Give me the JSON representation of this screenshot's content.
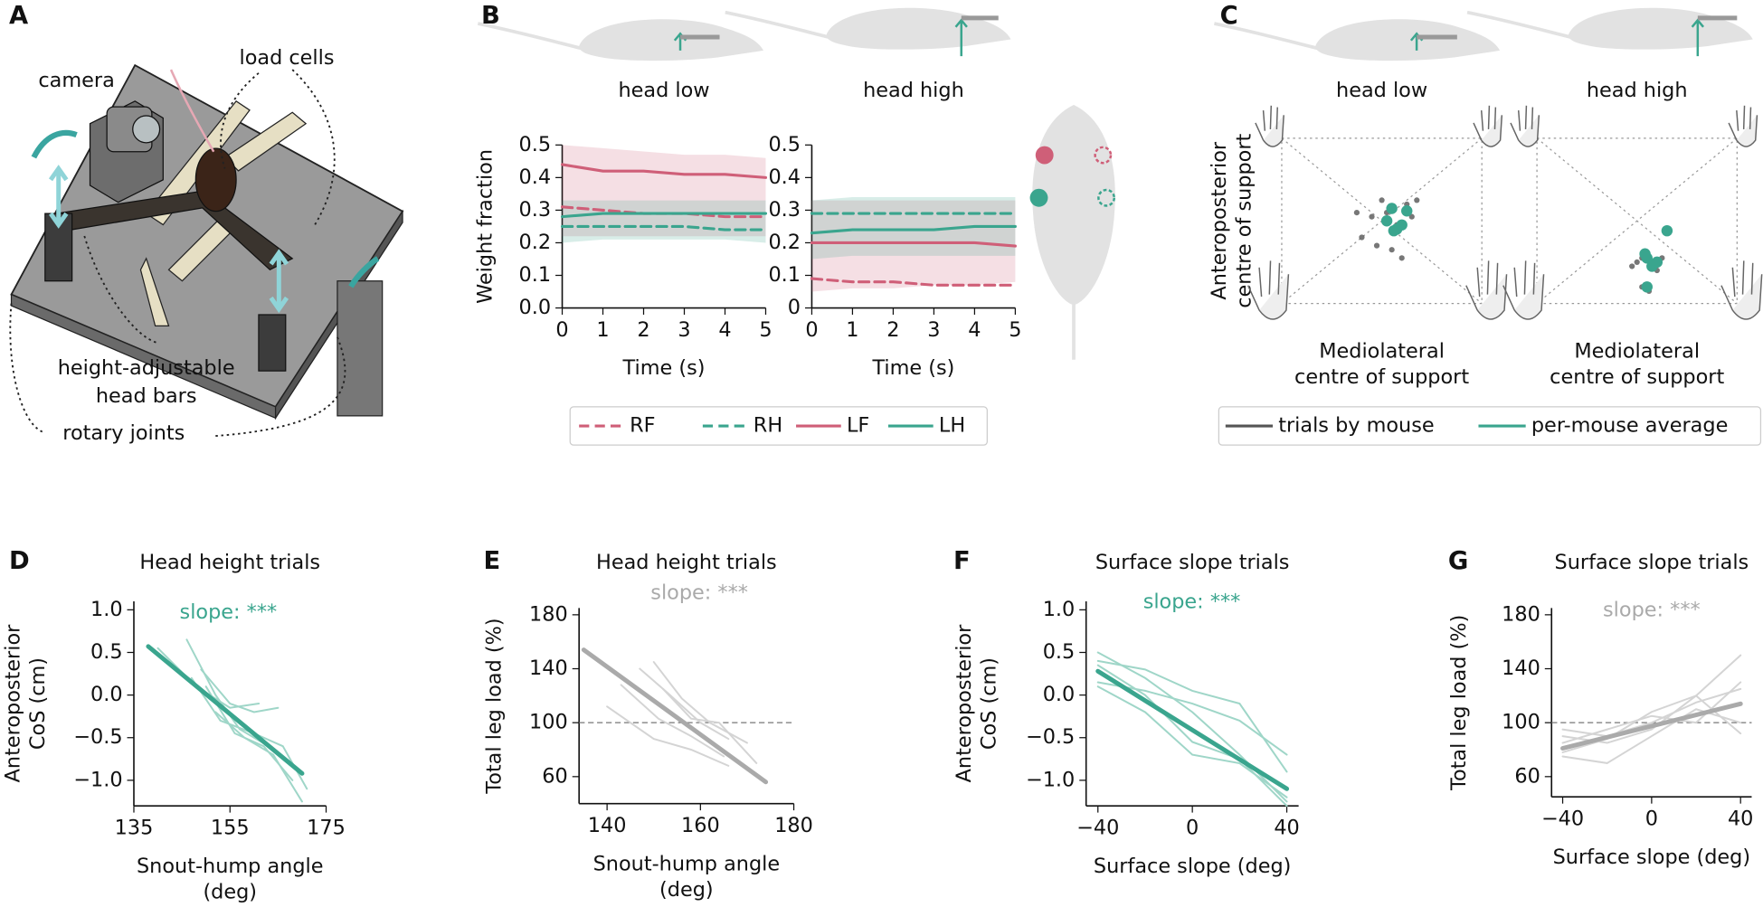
{
  "panel_labels": [
    "A",
    "B",
    "C",
    "D",
    "E",
    "F",
    "G"
  ],
  "illustration": {
    "labels": [
      "camera",
      "load cells",
      [
        "height-adjustable",
        "head bars"
      ],
      "rotary joints"
    ]
  },
  "chart_data": [
    {
      "type": "line",
      "title": "head low",
      "ylabel": "Weight fraction",
      "xlabel": "Time (s)",
      "x": [
        0,
        1,
        2,
        3,
        4,
        5
      ],
      "xlim": [
        0,
        5
      ],
      "xticks": [
        0,
        1,
        2,
        3,
        4,
        5
      ],
      "ylim": [
        0,
        0.5
      ],
      "yticks": [
        {
          "value": 0,
          "label": "0.0"
        },
        0.1,
        0.2,
        0.3,
        0.4,
        0.5
      ],
      "legend": "below",
      "series": [
        {
          "name": "RF",
          "color": "#cf5f78",
          "dash": true,
          "values": [
            0.31,
            0.3,
            0.29,
            0.29,
            0.28,
            0.28
          ]
        },
        {
          "name": "RH",
          "color": "#3aa58e",
          "dash": true,
          "values": [
            0.25,
            0.25,
            0.25,
            0.25,
            0.24,
            0.24
          ]
        },
        {
          "name": "LF",
          "color": "#cf5f78",
          "values": [
            0.44,
            0.42,
            0.42,
            0.41,
            0.41,
            0.4
          ],
          "lower": [
            0.22,
            0.22,
            0.22,
            0.22,
            0.22,
            0.22
          ],
          "upper": [
            0.5,
            0.49,
            0.48,
            0.47,
            0.47,
            0.46
          ]
        },
        {
          "name": "LH",
          "color": "#3aa58e",
          "values": [
            0.28,
            0.29,
            0.29,
            0.29,
            0.29,
            0.29
          ],
          "lower": [
            0.2,
            0.21,
            0.21,
            0.21,
            0.21,
            0.2
          ],
          "upper": [
            0.33,
            0.33,
            0.33,
            0.33,
            0.33,
            0.33
          ]
        }
      ]
    },
    {
      "type": "line",
      "title": "head high",
      "xlabel": "Time (s)",
      "x": [
        0,
        1,
        2,
        3,
        4,
        5
      ],
      "xlim": [
        0,
        5
      ],
      "xticks": [
        0,
        1,
        2,
        3,
        4,
        5
      ],
      "ylim": [
        0,
        0.5
      ],
      "yticks": [
        0,
        0.1,
        0.2,
        0.3,
        0.4,
        0.5
      ],
      "series": [
        {
          "color": "#cf5f78",
          "dash": true,
          "values": [
            0.09,
            0.08,
            0.08,
            0.07,
            0.07,
            0.07
          ]
        },
        {
          "color": "#3aa58e",
          "dash": true,
          "values": [
            0.29,
            0.29,
            0.29,
            0.29,
            0.29,
            0.29
          ]
        },
        {
          "color": "#cf5f78",
          "values": [
            0.2,
            0.2,
            0.2,
            0.2,
            0.2,
            0.19
          ],
          "lower": [
            0.05,
            0.06,
            0.06,
            0.07,
            0.07,
            0.08
          ],
          "upper": [
            0.33,
            0.33,
            0.33,
            0.33,
            0.33,
            0.33
          ]
        },
        {
          "color": "#3aa58e",
          "values": [
            0.23,
            0.24,
            0.24,
            0.24,
            0.25,
            0.25
          ],
          "lower": [
            0.15,
            0.16,
            0.16,
            0.16,
            0.16,
            0.16
          ],
          "upper": [
            0.33,
            0.34,
            0.34,
            0.34,
            0.34,
            0.34
          ]
        }
      ]
    },
    {
      "type": "scatter",
      "title": "head low",
      "ylabel": [
        "Anteroposterior",
        "centre of support"
      ],
      "xlabel": [
        "Mediolateral",
        "centre of support"
      ],
      "xlim": [
        -1,
        1
      ],
      "ylim": [
        -1,
        1
      ],
      "legend": "below",
      "series": [
        {
          "name": "trials by mouse",
          "color": "#555555",
          "x": [
            -0.1,
            0.05,
            0.15,
            0.25,
            -0.2,
            0.1,
            0.3,
            -0.05,
            0.2,
            0.35,
            -0.25,
            0.0
          ],
          "values": [
            0.05,
            0.1,
            -0.05,
            0.2,
            -0.2,
            -0.35,
            0.05,
            -0.3,
            -0.45,
            0.25,
            0.1,
            0.25
          ]
        },
        {
          "name": "per-mouse average",
          "color": "#3aa58e",
          "x": [
            0.05,
            0.15,
            0.25,
            0.1,
            0.2,
            0.12
          ],
          "values": [
            0.0,
            -0.1,
            0.12,
            0.15,
            -0.05,
            -0.12
          ]
        }
      ]
    },
    {
      "type": "scatter",
      "title": "head high",
      "xlabel": [
        "Mediolateral",
        "centre of support"
      ],
      "xlim": [
        -1,
        1
      ],
      "ylim": [
        -1,
        1
      ],
      "series": [
        {
          "color": "#555555",
          "x": [
            0.05,
            0.1,
            0.15,
            0.0,
            0.2,
            0.05,
            0.12,
            -0.05,
            0.25
          ],
          "values": [
            -0.45,
            -0.4,
            -0.55,
            -0.5,
            -0.6,
            -0.8,
            -0.85,
            -0.55,
            -0.45
          ]
        },
        {
          "color": "#3aa58e",
          "x": [
            0.1,
            0.15,
            0.3,
            0.1,
            0.2,
            0.08
          ],
          "values": [
            -0.45,
            -0.55,
            -0.12,
            -0.8,
            -0.5,
            -0.4
          ]
        }
      ]
    },
    {
      "type": "line",
      "title": "Head height trials",
      "ylabel": [
        "Anteroposterior",
        "CoS (cm)"
      ],
      "xlabel": [
        "Snout-hump angle",
        "(deg)"
      ],
      "annotation": {
        "text": "slope: ***",
        "color": "#3aa58e"
      },
      "xlim": [
        135,
        175
      ],
      "xticks": [
        135,
        155,
        175
      ],
      "ylim": [
        -1.3,
        1.1
      ],
      "yticks": [
        {
          "value": 1,
          "label": "1.0"
        },
        0.5,
        {
          "value": 0,
          "label": "0.0"
        },
        {
          "value": -0.5,
          "label": "−0.5"
        },
        {
          "value": -1,
          "label": "−1.0"
        }
      ],
      "series": [
        {
          "color": "#9fd6c8",
          "linewidth": 1.6,
          "x": [
            146,
            152,
            157,
            163
          ],
          "values": [
            0.65,
            0.0,
            -0.4,
            -0.6
          ]
        },
        {
          "color": "#9fd6c8",
          "linewidth": 1.6,
          "x": [
            149,
            155,
            160,
            165
          ],
          "values": [
            0.3,
            -0.1,
            -0.2,
            -0.15
          ]
        },
        {
          "color": "#9fd6c8",
          "linewidth": 1.6,
          "x": [
            147,
            153,
            160,
            166,
            171
          ],
          "values": [
            0.2,
            -0.3,
            -0.45,
            -0.6,
            -1.1
          ]
        },
        {
          "color": "#9fd6c8",
          "linewidth": 1.6,
          "x": [
            150,
            156,
            162,
            168
          ],
          "values": [
            0.1,
            -0.45,
            -0.6,
            -1.0
          ]
        },
        {
          "color": "#9fd6c8",
          "linewidth": 1.6,
          "x": [
            152,
            158,
            164,
            170
          ],
          "values": [
            -0.2,
            -0.5,
            -0.7,
            -1.25
          ]
        },
        {
          "color": "#9fd6c8",
          "linewidth": 1.6,
          "x": [
            140,
            148,
            155,
            161
          ],
          "values": [
            0.55,
            0.1,
            -0.15,
            -0.1
          ]
        },
        {
          "color": "#3aa58e",
          "linewidth": 4,
          "x": [
            138,
            170
          ],
          "values": [
            0.57,
            -0.92
          ]
        }
      ]
    },
    {
      "type": "line",
      "title": "Head height trials",
      "ylabel": "Total leg load (%)",
      "xlabel": [
        "Snout-hump angle",
        "(deg)"
      ],
      "annotation": {
        "text": "slope: ***",
        "color": "#aaaaaa"
      },
      "hline": 100,
      "xlim": [
        134,
        180
      ],
      "xticks": [
        140,
        160,
        180
      ],
      "ylim": [
        40,
        185
      ],
      "yticks": [
        180,
        140,
        100,
        60
      ],
      "series": [
        {
          "color": "#d4d4d4",
          "linewidth": 1.6,
          "x": [
            147,
            153,
            160,
            166
          ],
          "values": [
            140,
            122,
            100,
            88
          ]
        },
        {
          "color": "#d4d4d4",
          "linewidth": 1.6,
          "x": [
            140,
            150,
            158,
            166
          ],
          "values": [
            112,
            88,
            80,
            68
          ]
        },
        {
          "color": "#d4d4d4",
          "linewidth": 1.6,
          "x": [
            150,
            156,
            162,
            170
          ],
          "values": [
            145,
            118,
            100,
            85
          ]
        },
        {
          "color": "#d4d4d4",
          "linewidth": 1.6,
          "x": [
            152,
            158,
            164,
            172
          ],
          "values": [
            125,
            103,
            100,
            70
          ]
        },
        {
          "color": "#d4d4d4",
          "linewidth": 1.6,
          "x": [
            143,
            151,
            158,
            165
          ],
          "values": [
            128,
            103,
            90,
            75
          ]
        },
        {
          "color": "#aaaaaa",
          "linewidth": 4,
          "x": [
            135,
            174
          ],
          "values": [
            154,
            56
          ]
        }
      ]
    },
    {
      "type": "line",
      "title": "Surface slope trials",
      "ylabel": [
        "Anteroposterior",
        "CoS (cm)"
      ],
      "xlabel": "Surface slope (deg)",
      "annotation": {
        "text": "slope: ***",
        "color": "#3aa58e"
      },
      "xlim": [
        -45,
        45
      ],
      "xticks": [
        {
          "value": -40,
          "label": "−40"
        },
        0,
        40
      ],
      "ylim": [
        -1.3,
        1.1
      ],
      "yticks": [
        {
          "value": 1,
          "label": "1.0"
        },
        0.5,
        {
          "value": 0,
          "label": "0.0"
        },
        {
          "value": -0.5,
          "label": "−0.5"
        },
        {
          "value": -1,
          "label": "−1.0"
        }
      ],
      "series": [
        {
          "color": "#9fd6c8",
          "linewidth": 1.6,
          "x": [
            -40,
            -20,
            0,
            20,
            40
          ],
          "values": [
            0.5,
            0.2,
            -0.2,
            -0.7,
            -1.25
          ]
        },
        {
          "color": "#9fd6c8",
          "linewidth": 1.6,
          "x": [
            -40,
            -20,
            0,
            20,
            40
          ],
          "values": [
            0.15,
            0.05,
            -0.1,
            -0.3,
            -0.7
          ]
        },
        {
          "color": "#9fd6c8",
          "linewidth": 1.6,
          "x": [
            -40,
            -20,
            0,
            20,
            40
          ],
          "values": [
            0.35,
            0.0,
            -0.55,
            -0.75,
            -1.3
          ]
        },
        {
          "color": "#9fd6c8",
          "linewidth": 1.6,
          "x": [
            -40,
            -20,
            0,
            20,
            40
          ],
          "values": [
            0.1,
            -0.2,
            -0.7,
            -0.8,
            -1.2
          ]
        },
        {
          "color": "#9fd6c8",
          "linewidth": 1.6,
          "x": [
            -40,
            -20,
            0,
            20,
            40
          ],
          "values": [
            0.4,
            0.3,
            0.05,
            -0.1,
            -0.9
          ]
        },
        {
          "color": "#3aa58e",
          "linewidth": 4,
          "x": [
            -40,
            40
          ],
          "values": [
            0.28,
            -1.1
          ]
        }
      ]
    },
    {
      "type": "line",
      "title": "Surface slope trials",
      "ylabel": "Total leg load (%)",
      "xlabel": "Surface slope (deg)",
      "annotation": {
        "text": "slope: ***",
        "color": "#aaaaaa"
      },
      "hline": 100,
      "xlim": [
        -45,
        45
      ],
      "xticks": [
        {
          "value": -40,
          "label": "−40"
        },
        0,
        40
      ],
      "ylim": [
        45,
        185
      ],
      "yticks": [
        180,
        140,
        100,
        60
      ],
      "series": [
        {
          "color": "#d4d4d4",
          "linewidth": 1.6,
          "x": [
            -40,
            -20,
            0,
            20,
            40
          ],
          "values": [
            90,
            85,
            95,
            120,
            150
          ]
        },
        {
          "color": "#d4d4d4",
          "linewidth": 1.6,
          "x": [
            -40,
            -20,
            0,
            20,
            40
          ],
          "values": [
            75,
            70,
            90,
            110,
            100
          ]
        },
        {
          "color": "#d4d4d4",
          "linewidth": 1.6,
          "x": [
            -40,
            -20,
            0,
            20,
            40
          ],
          "values": [
            85,
            95,
            105,
            100,
            130
          ]
        },
        {
          "color": "#d4d4d4",
          "linewidth": 1.6,
          "x": [
            -40,
            -20,
            0,
            20,
            40
          ],
          "values": [
            78,
            88,
            108,
            120,
            92
          ]
        },
        {
          "color": "#d4d4d4",
          "linewidth": 1.6,
          "x": [
            -40,
            -20,
            0,
            20,
            40
          ],
          "values": [
            95,
            90,
            100,
            115,
            125
          ]
        },
        {
          "color": "#aaaaaa",
          "linewidth": 4,
          "x": [
            -40,
            40
          ],
          "values": [
            81,
            114
          ]
        }
      ]
    }
  ]
}
